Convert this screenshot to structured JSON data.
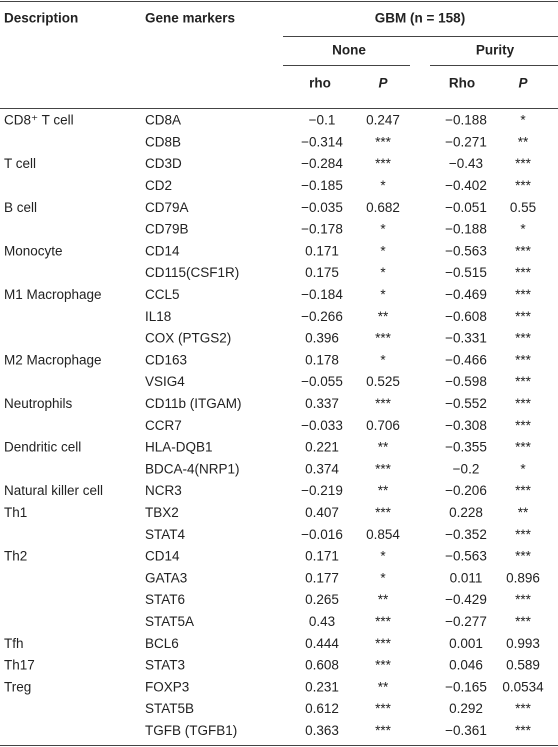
{
  "table": {
    "header": {
      "description": "Description",
      "gene_markers": "Gene markers",
      "group": "GBM (n = 158)",
      "none": "None",
      "purity": "Purity",
      "rho": "rho",
      "p1": "P",
      "rho2": "Rho",
      "p2": "P"
    },
    "rows": [
      [
        "CD8⁺ T cell",
        "CD8A",
        "−0.1",
        "0.247",
        "−0.188",
        "*"
      ],
      [
        null,
        "CD8B",
        "−0.314",
        "***",
        "−0.271",
        "**"
      ],
      [
        "T cell",
        "CD3D",
        "−0.284",
        "***",
        "−0.43",
        "***"
      ],
      [
        null,
        "CD2",
        "−0.185",
        "*",
        "−0.402",
        "***"
      ],
      [
        "B cell",
        "CD79A",
        "−0.035",
        "0.682",
        "−0.051",
        "0.55"
      ],
      [
        null,
        "CD79B",
        "−0.178",
        "*",
        "−0.188",
        "*"
      ],
      [
        "Monocyte",
        "CD14",
        "0.171",
        "*",
        "−0.563",
        "***"
      ],
      [
        null,
        "CD115(CSF1R)",
        "0.175",
        "*",
        "−0.515",
        "***"
      ],
      [
        "M1 Macrophage",
        "CCL5",
        "−0.184",
        "*",
        "−0.469",
        "***"
      ],
      [
        null,
        "IL18",
        "−0.266",
        "**",
        "−0.608",
        "***"
      ],
      [
        null,
        "COX (PTGS2)",
        "0.396",
        "***",
        "−0.331",
        "***"
      ],
      [
        "M2 Macrophage",
        "CD163",
        "0.178",
        "*",
        "−0.466",
        "***"
      ],
      [
        null,
        "VSIG4",
        "−0.055",
        "0.525",
        "−0.598",
        "***"
      ],
      [
        "Neutrophils",
        "CD11b (ITGAM)",
        "0.337",
        "***",
        "−0.552",
        "***"
      ],
      [
        null,
        "CCR7",
        "−0.033",
        "0.706",
        "−0.308",
        "***"
      ],
      [
        "Dendritic cell",
        "HLA-DQB1",
        "0.221",
        "**",
        "−0.355",
        "***"
      ],
      [
        null,
        "BDCA-4(NRP1)",
        "0.374",
        "***",
        "−0.2",
        "*"
      ],
      [
        "Natural killer cell",
        "NCR3",
        "−0.219",
        "**",
        "−0.206",
        "***"
      ],
      [
        "Th1",
        "TBX2",
        "0.407",
        "***",
        "0.228",
        "**"
      ],
      [
        null,
        "STAT4",
        "−0.016",
        "0.854",
        "−0.352",
        "***"
      ],
      [
        "Th2",
        "CD14",
        "0.171",
        "*",
        "−0.563",
        "***"
      ],
      [
        null,
        "GATA3",
        "0.177",
        "*",
        "0.011",
        "0.896"
      ],
      [
        null,
        "STAT6",
        "0.265",
        "**",
        "−0.429",
        "***"
      ],
      [
        null,
        "STAT5A",
        "0.43",
        "***",
        "−0.277",
        "***"
      ],
      [
        "Tfh",
        "BCL6",
        "0.444",
        "***",
        "0.001",
        "0.993"
      ],
      [
        "Th17",
        "STAT3",
        "0.608",
        "***",
        "0.046",
        "0.589"
      ],
      [
        "Treg",
        "FOXP3",
        "0.231",
        "**",
        "−0.165",
        "0.0534"
      ],
      [
        null,
        "STAT5B",
        "0.612",
        "***",
        "0.292",
        "***"
      ],
      [
        null,
        "TGFB (TGFB1)",
        "0.363",
        "***",
        "−0.361",
        "***"
      ]
    ]
  }
}
